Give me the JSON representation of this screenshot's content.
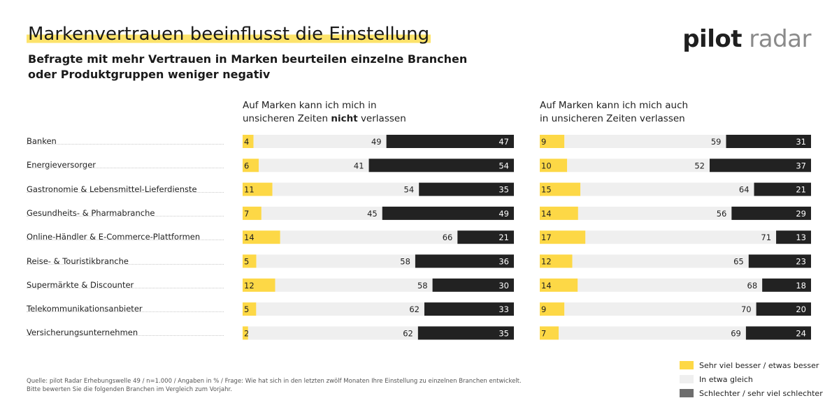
{
  "header": {
    "title": "Markenvertrauen beeinflusst die Einstellung",
    "subtitle_line1": "Befragte mit mehr Vertrauen in Marken beurteilen einzelne Branchen",
    "subtitle_line2": "oder Produktgruppen weniger negativ",
    "logo_word1": "pilot",
    "logo_word2": "radar"
  },
  "panels": {
    "left": {
      "heading_line1": "Auf Marken kann ich mich in",
      "heading_pre": "unsicheren Zeiten ",
      "heading_bold": "nicht",
      "heading_post": " verlassen"
    },
    "right": {
      "heading_line1": "Auf Marken kann ich mich auch",
      "heading_line2": "in unsicheren Zeiten verlassen"
    }
  },
  "colors": {
    "better": "#fdd846",
    "same": "#efefef",
    "worse": "#222222"
  },
  "legend": [
    {
      "label": "Sehr viel besser / etwas besser",
      "color": "#fdd846"
    },
    {
      "label": "In etwa gleich",
      "color": "#efefef"
    },
    {
      "label": "Schlechter / sehr viel schlechter",
      "color": "#6e6e6e"
    }
  ],
  "source_line1": "Quelle: pilot Radar Erhebungswelle 49 / n=1.000 / Angaben in % / Frage: Wie hat sich in den letzten zwölf Monaten Ihre Einstellung zu einzelnen Branchen entwickelt.",
  "source_line2": "Bitte bewerten Sie die folgenden Branchen im Vergleich zum Vorjahr.",
  "chart_data": [
    {
      "type": "bar",
      "stacked": true,
      "orientation": "horizontal",
      "title": "Auf Marken kann ich mich in unsicheren Zeiten nicht verlassen",
      "categories": [
        "Banken",
        "Energieversorger",
        "Gastronomie & Lebensmittel-Lieferdienste",
        "Gesundheits- & Pharmabranche",
        "Online-Händler & E-Commerce-Plattformen",
        "Reise- & Touristikbranche",
        "Supermärkte & Discounter",
        "Telekommunikationsanbieter",
        "Versicherungsunternehmen"
      ],
      "series": [
        {
          "name": "Sehr viel besser / etwas besser",
          "values": [
            4,
            6,
            11,
            7,
            14,
            5,
            12,
            5,
            2
          ]
        },
        {
          "name": "In etwa gleich",
          "values": [
            49,
            41,
            54,
            45,
            66,
            58,
            58,
            62,
            62
          ]
        },
        {
          "name": "Schlechter / sehr viel schlechter",
          "values": [
            47,
            54,
            35,
            49,
            21,
            36,
            30,
            33,
            35
          ]
        }
      ]
    },
    {
      "type": "bar",
      "stacked": true,
      "orientation": "horizontal",
      "title": "Auf Marken kann ich mich auch in unsicheren Zeiten verlassen",
      "categories": [
        "Banken",
        "Energieversorger",
        "Gastronomie & Lebensmittel-Lieferdienste",
        "Gesundheits- & Pharmabranche",
        "Online-Händler & E-Commerce-Plattformen",
        "Reise- & Touristikbranche",
        "Supermärkte & Discounter",
        "Telekommunikationsanbieter",
        "Versicherungsunternehmen"
      ],
      "series": [
        {
          "name": "Sehr viel besser / etwas besser",
          "values": [
            9,
            10,
            15,
            14,
            17,
            12,
            14,
            9,
            7
          ]
        },
        {
          "name": "In etwa gleich",
          "values": [
            59,
            52,
            64,
            56,
            71,
            65,
            68,
            70,
            69
          ]
        },
        {
          "name": "Schlechter / sehr viel schlechter",
          "values": [
            31,
            37,
            21,
            29,
            13,
            23,
            18,
            20,
            24
          ]
        }
      ]
    }
  ]
}
